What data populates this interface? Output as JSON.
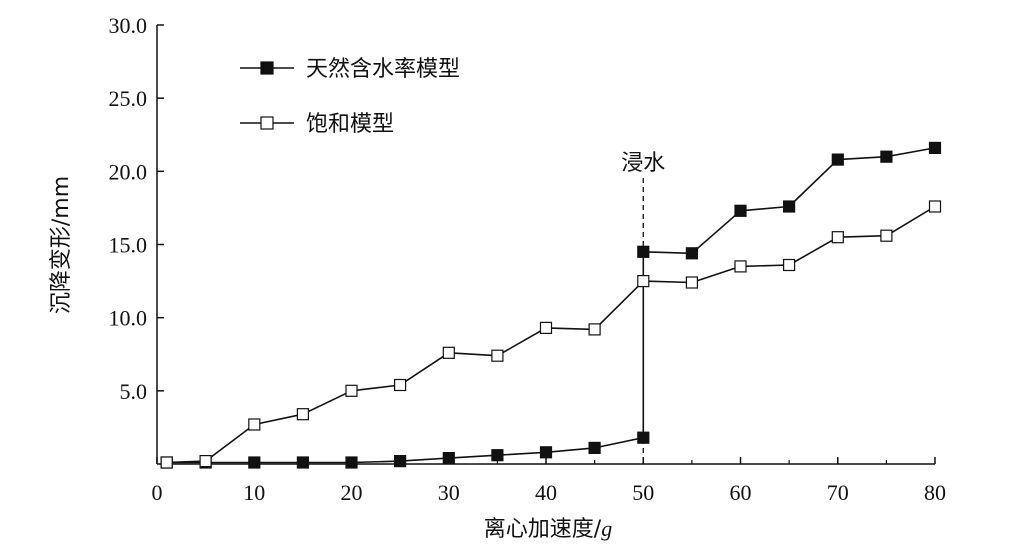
{
  "chart_data": {
    "type": "line",
    "xlabel": "离心加速度/",
    "xlabel_unit": "g",
    "ylabel": "沉降变形/mm",
    "xlim": [
      0,
      80
    ],
    "ylim": [
      0,
      30
    ],
    "x_ticks": [
      "0",
      "10",
      "20",
      "30",
      "40",
      "50",
      "60",
      "70",
      "80"
    ],
    "y_ticks": [
      "5.0",
      "10.0",
      "15.0",
      "20.0",
      "25.0",
      "30.0"
    ],
    "grid": false,
    "legend_position": "top-left",
    "annotation": {
      "text": "浸水",
      "x": 50
    },
    "series": [
      {
        "name": "天然含水率模型",
        "marker": "filled-square",
        "x": [
          1,
          5,
          10,
          15,
          20,
          25,
          30,
          35,
          40,
          45,
          50,
          50,
          55,
          60,
          65,
          70,
          75,
          80
        ],
        "y": [
          0.1,
          0.1,
          0.1,
          0.1,
          0.1,
          0.2,
          0.4,
          0.6,
          0.8,
          1.1,
          1.8,
          14.5,
          14.4,
          17.3,
          17.6,
          20.8,
          21.0,
          21.6
        ]
      },
      {
        "name": "饱和模型",
        "marker": "open-square",
        "x": [
          1,
          5,
          10,
          15,
          20,
          25,
          30,
          35,
          40,
          45,
          50,
          55,
          60,
          65,
          70,
          75,
          80
        ],
        "y": [
          0.1,
          0.2,
          2.7,
          3.4,
          5.0,
          5.4,
          7.6,
          7.4,
          9.3,
          9.2,
          12.5,
          12.4,
          13.5,
          13.6,
          15.5,
          15.6,
          17.6
        ]
      }
    ],
    "colors": {
      "line": "#111111",
      "marker_fill": "#111111",
      "open_marker_fill": "#ffffff"
    }
  }
}
